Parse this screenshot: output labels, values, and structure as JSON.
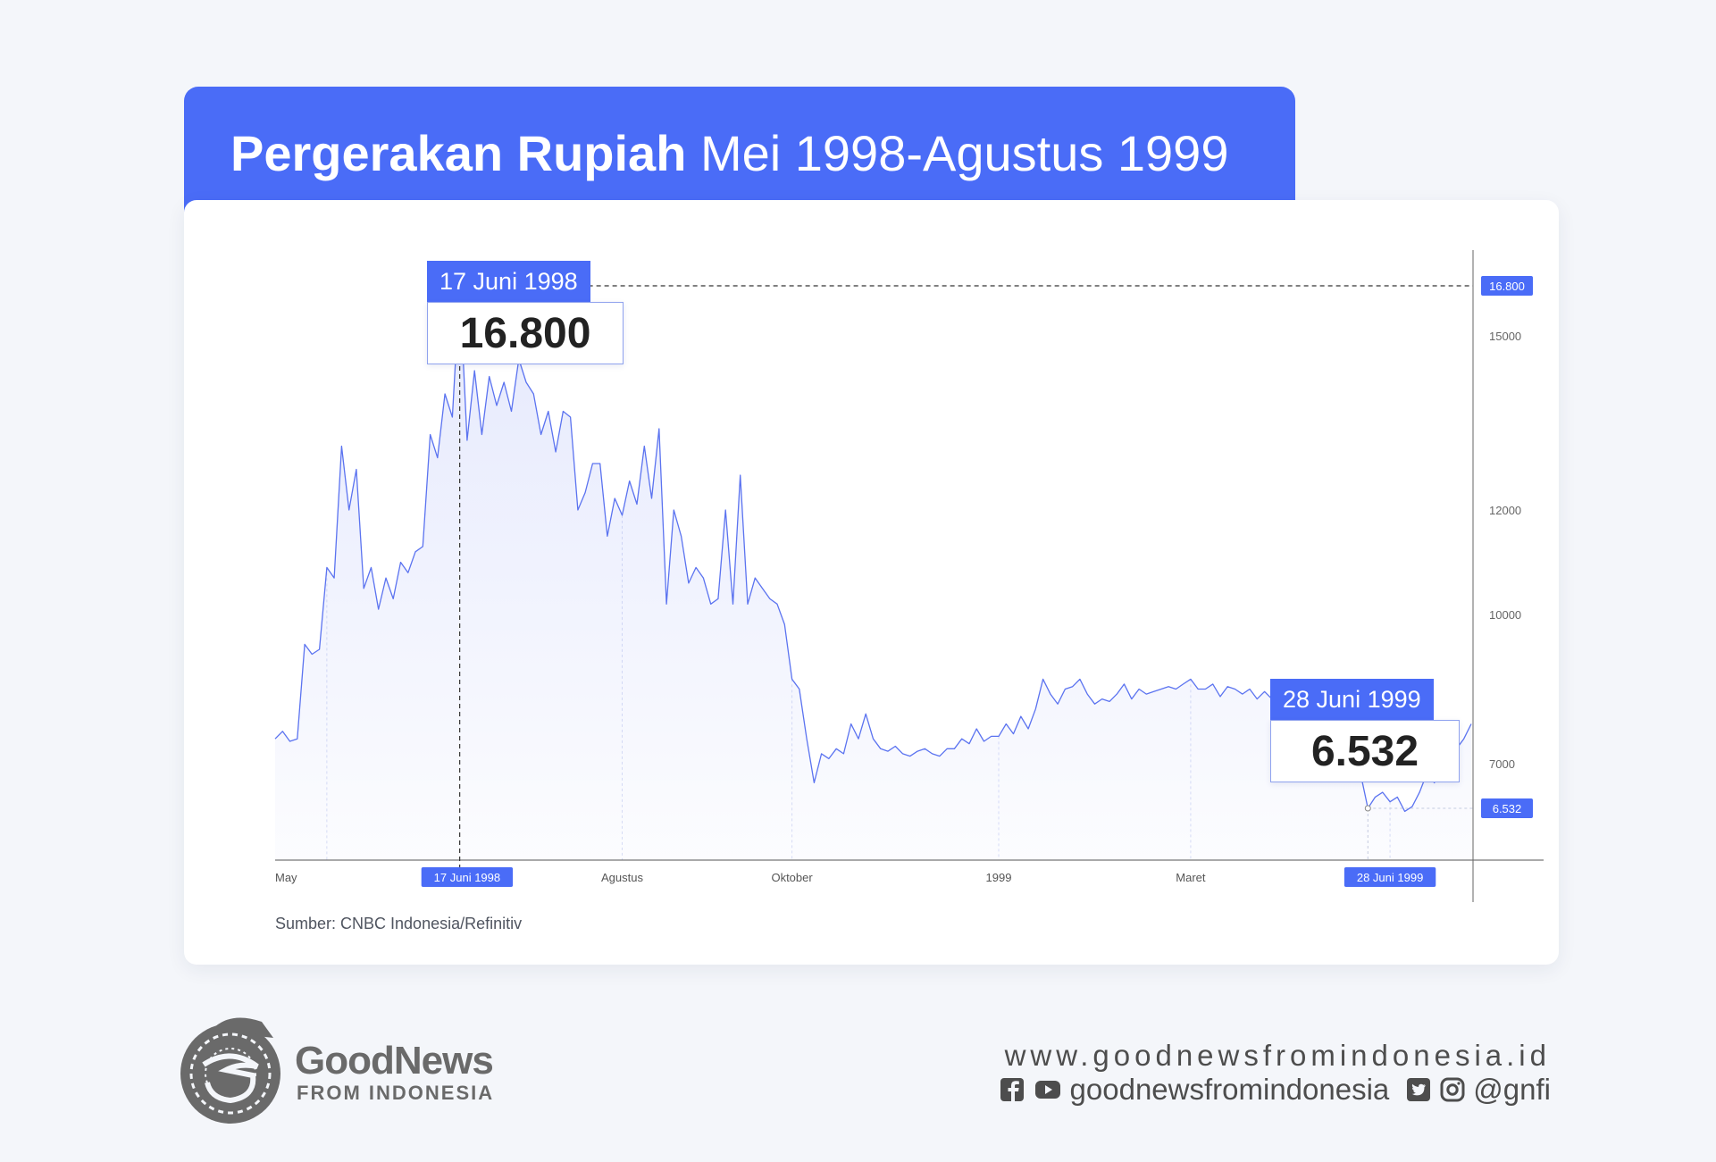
{
  "title": {
    "bold": "Pergerakan Rupiah",
    "rest": "Mei 1998-Agustus 1999"
  },
  "source": "Sumber: CNBC Indonesia/Refinitiv",
  "callouts": {
    "peak": {
      "date": "17 Juni 1998",
      "value": "16.800"
    },
    "end": {
      "date": "28 Juni 1999",
      "value": "6.532"
    }
  },
  "chart_data": {
    "type": "line",
    "title": "Pergerakan Rupiah Mei 1998-Agustus 1999",
    "xlabel": "",
    "ylabel": "",
    "x_tick_labels": [
      "May",
      "17 Juni 1998",
      "Agustus",
      "Oktober",
      "1999",
      "Maret",
      "28 Juni 1999"
    ],
    "y_tick_labels": [
      "16.800",
      "15000",
      "12000",
      "10000",
      "7000",
      "6.532"
    ],
    "y_tick_values": [
      16800,
      15000,
      12000,
      10000,
      7000,
      6532
    ],
    "highlight_labels": [
      "16.800",
      "6.532"
    ],
    "axis_position": "right",
    "grid": false,
    "series": [
      {
        "values": [
          7500,
          7650,
          7450,
          7500,
          9400,
          9200,
          9300,
          10900,
          10700,
          13100,
          12000,
          12700,
          10500,
          10900,
          10100,
          10700,
          10300,
          11000,
          10800,
          11200,
          11300,
          13300,
          12900,
          14000,
          13600,
          16800,
          13200,
          14400,
          13300,
          14300,
          13800,
          14200,
          13700,
          14600,
          14200,
          14000,
          13300,
          13700,
          13000,
          13700,
          13600,
          12000,
          12300,
          12800,
          12800,
          11500,
          12200,
          11900,
          12500,
          12100,
          13100,
          12200,
          13400,
          10200,
          12000,
          11500,
          10600,
          10900,
          10700,
          10200,
          10300,
          12000,
          10200,
          12600,
          10200,
          10700,
          10500,
          10300,
          10200,
          9800,
          8700,
          8500,
          7500,
          6800,
          7200,
          7100,
          7300,
          7200,
          7800,
          7500,
          8000,
          7500,
          7300,
          7250,
          7350,
          7200,
          7150,
          7250,
          7300,
          7200,
          7150,
          7300,
          7300,
          7500,
          7400,
          7700,
          7450,
          7550,
          7550,
          7800,
          7600,
          7950,
          7700,
          8100,
          8700,
          8400,
          8200,
          8500,
          8550,
          8700,
          8400,
          8200,
          8300,
          8250,
          8400,
          8600,
          8300,
          8500,
          8400,
          8450,
          8500,
          8550,
          8500,
          8600,
          8700,
          8500,
          8500,
          8600,
          8350,
          8550,
          8500,
          8400,
          8500,
          8300,
          8450,
          8300,
          8100,
          7800,
          7400,
          7600,
          7600,
          7800,
          7700,
          7600,
          7800,
          7400,
          7300,
          6900,
          6532,
          6650,
          6700,
          6600,
          6650,
          6500,
          6550,
          6700,
          6900,
          6800,
          6950,
          7100,
          7300,
          7500,
          7800
        ]
      }
    ]
  },
  "footer": {
    "brand_line1": "GoodNews",
    "brand_line2": "FROM INDONESIA",
    "website": "www.goodnewsfromindonesia.id",
    "social_handle_1": "goodnewsfromindonesia",
    "social_handle_2": "@gnfi",
    "icons": [
      "facebook-icon",
      "youtube-icon",
      "twitter-icon",
      "instagram-icon"
    ]
  }
}
